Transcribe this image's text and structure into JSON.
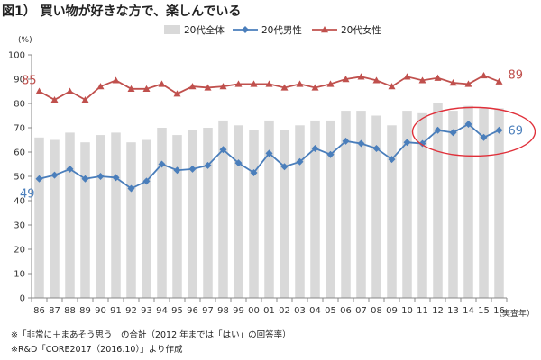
{
  "title": "図1） 買い物が好きな方で、楽しんでいる",
  "unit_label": "(%)",
  "x_unit_label": "（実査年）",
  "notes": [
    "※「非常に＋まあそう思う」の合計（2012 年までは「はい」の回答率）",
    "※R&D「CORE2017（2016.10）」より作成"
  ],
  "colors": {
    "bar": "#d9d9d9",
    "male": "#4a7ebb",
    "female": "#c0504d",
    "highlight_ellipse": "#e0303a",
    "grid": "#d0d0d0",
    "axis": "#888888"
  },
  "chart_data": {
    "type": "bar",
    "categories": [
      "86",
      "87",
      "88",
      "89",
      "90",
      "91",
      "92",
      "93",
      "94",
      "95",
      "96",
      "97",
      "98",
      "99",
      "00",
      "01",
      "02",
      "03",
      "04",
      "05",
      "06",
      "07",
      "08",
      "09",
      "10",
      "11",
      "12",
      "13",
      "14",
      "15",
      "16"
    ],
    "ylim": [
      0,
      100
    ],
    "yticks": [
      0,
      10,
      20,
      30,
      40,
      50,
      60,
      70,
      80,
      90,
      100
    ],
    "grid": false,
    "legend_position": "top",
    "series": [
      {
        "name": "20代全体",
        "type": "bar",
        "values": [
          66,
          65,
          68,
          64,
          67,
          68,
          64,
          65,
          70,
          67,
          69,
          70,
          73,
          71,
          69,
          73,
          69,
          71,
          73,
          73,
          77,
          77,
          75,
          71,
          77,
          76,
          80,
          77,
          79,
          78,
          78
        ]
      },
      {
        "name": "20代男性",
        "type": "line",
        "marker": "diamond",
        "values": [
          49,
          50.5,
          53,
          49,
          50,
          49.5,
          45,
          48,
          55,
          52.5,
          53,
          54.5,
          61,
          55.5,
          51.5,
          59.5,
          54,
          56,
          61.5,
          59,
          64.5,
          63.5,
          61.5,
          57,
          64,
          63.5,
          69,
          68,
          71.5,
          66,
          69
        ]
      },
      {
        "name": "20代女性",
        "type": "line",
        "marker": "triangle",
        "values": [
          85,
          81.5,
          85,
          81.5,
          87,
          89.5,
          86,
          86,
          88,
          84,
          87,
          86.5,
          87,
          88,
          88,
          88,
          86.5,
          88,
          86.5,
          88,
          90,
          91,
          89.5,
          87,
          91,
          89.5,
          90.5,
          88.5,
          88,
          91.5,
          89
        ]
      }
    ],
    "annotations": {
      "female_start": "85",
      "female_end": "89",
      "male_start": "49",
      "male_end": "69"
    },
    "highlight": {
      "shape": "ellipse",
      "x_from": "12",
      "x_to": "16"
    }
  }
}
